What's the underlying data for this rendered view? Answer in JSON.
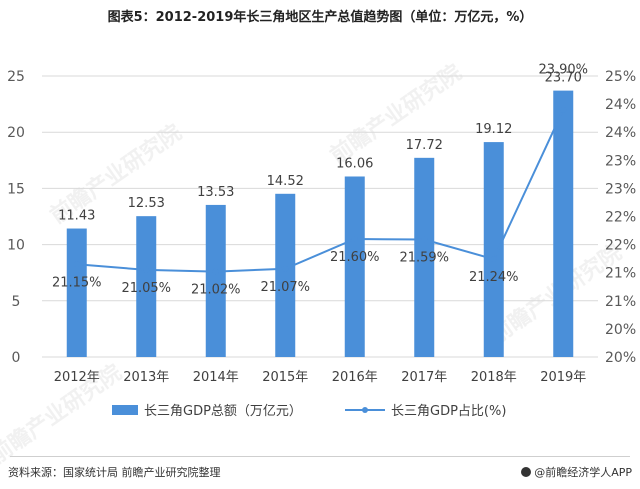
{
  "title": "图表5：2012-2019年长三角地区生产总值趋势图（单位：万亿元，%）",
  "source": "资料来源：国家统计局 前瞻产业研究院整理",
  "brand": "@前瞻经济学人APP",
  "watermark": "前瞻产业研究院",
  "colors": {
    "bar": "#4a8fd9",
    "line": "#4a8fd9",
    "grid": "#d9d9d9",
    "text": "#595959"
  },
  "chart_data": {
    "type": "bar+line",
    "categories": [
      "2012年",
      "2013年",
      "2014年",
      "2015年",
      "2016年",
      "2017年",
      "2018年",
      "2019年"
    ],
    "series": [
      {
        "name": "长三角GDP总额（万亿元）",
        "type": "bar",
        "axis": "left",
        "values": [
          11.43,
          12.53,
          13.53,
          14.52,
          16.06,
          17.72,
          19.12,
          23.7
        ],
        "labels": [
          "11.43",
          "12.53",
          "13.53",
          "14.52",
          "16.06",
          "17.72",
          "19.12",
          "23.70"
        ]
      },
      {
        "name": "长三角GDP占比(%)",
        "type": "line",
        "axis": "right",
        "values": [
          21.15,
          21.05,
          21.02,
          21.07,
          21.6,
          21.59,
          21.24,
          23.9
        ],
        "labels": [
          "21.15%",
          "21.05%",
          "21.02%",
          "21.07%",
          "21.60%",
          "21.59%",
          "21.24%",
          "23.90%"
        ]
      }
    ],
    "y_left": {
      "ylim": [
        0,
        25
      ],
      "ticks": [
        "0",
        "5",
        "10",
        "15",
        "20",
        "25"
      ]
    },
    "y_right": {
      "ylim": [
        19.5,
        24.5
      ],
      "ticks": [
        "20%",
        "20%",
        "21%",
        "21%",
        "22%",
        "22%",
        "23%",
        "23%",
        "24%",
        "24%",
        "25%"
      ]
    },
    "grid": true,
    "legend_position": "bottom"
  }
}
